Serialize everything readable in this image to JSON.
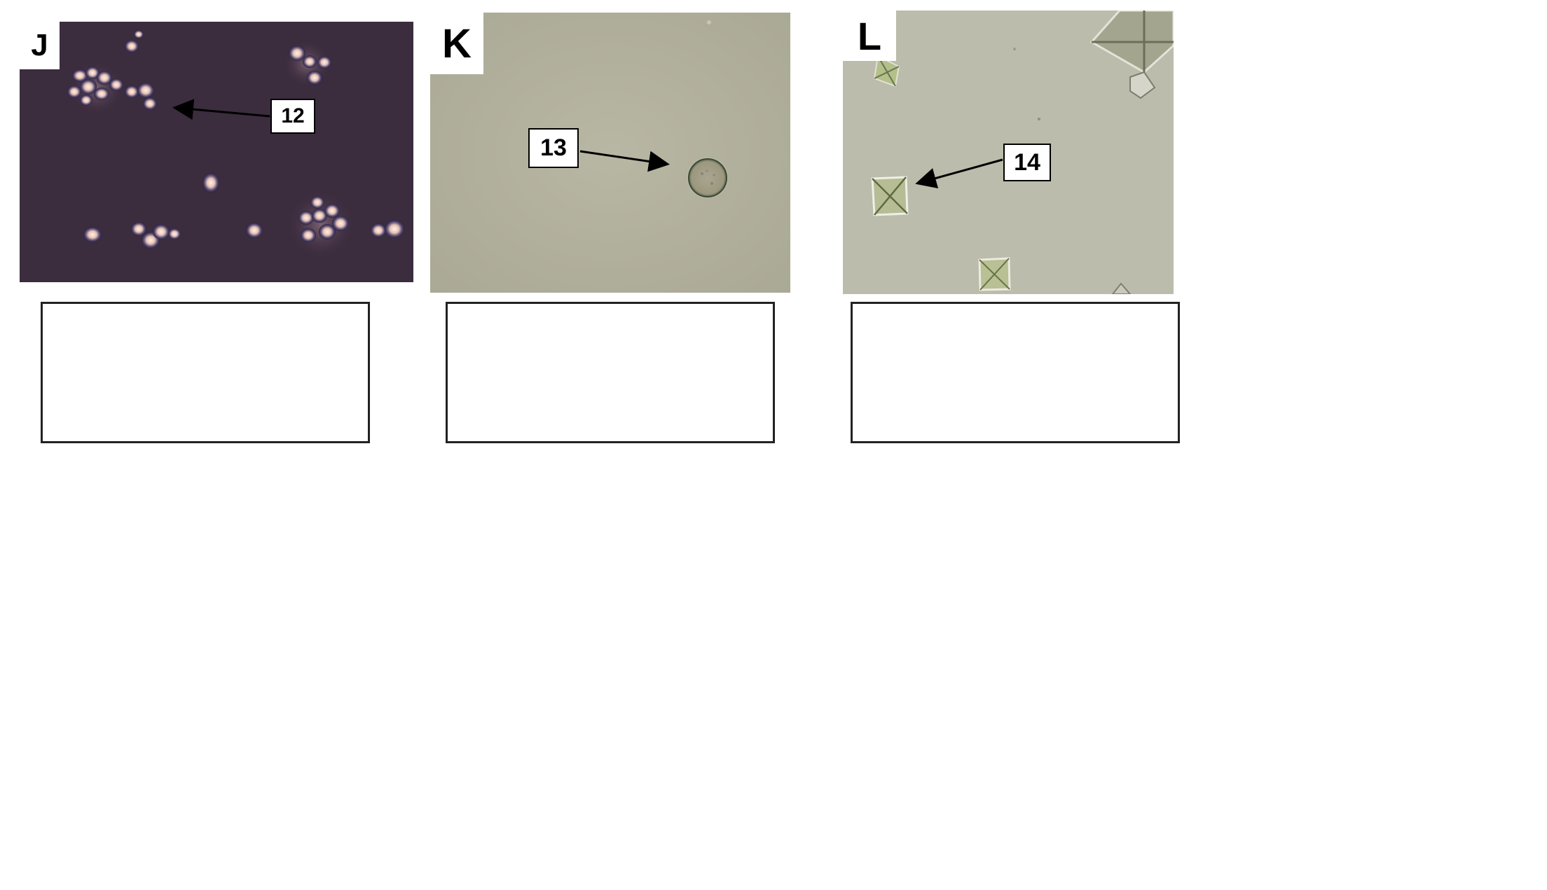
{
  "panels": [
    {
      "letter": "J",
      "callout": "12",
      "subject": "yeast-cells-phase-contrast",
      "background": "#3b2c3e"
    },
    {
      "letter": "K",
      "callout": "13",
      "subject": "round-cell",
      "background": "#b4b3a0"
    },
    {
      "letter": "L",
      "callout": "14",
      "subject": "envelope-crystals",
      "background": "#bbbcab"
    }
  ],
  "answer_boxes": [
    "",
    "",
    ""
  ]
}
